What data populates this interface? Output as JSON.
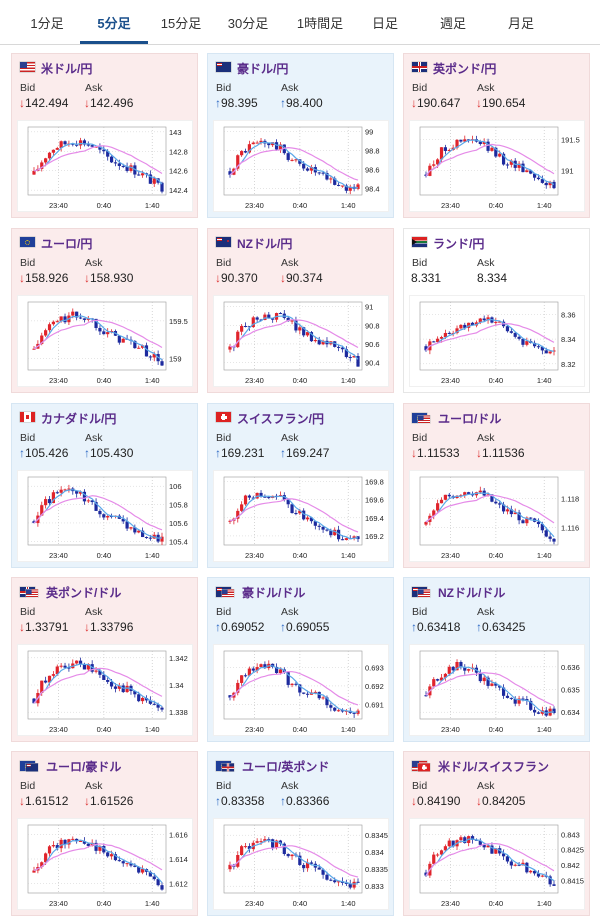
{
  "tabs": [
    {
      "label": "1分足",
      "active": false
    },
    {
      "label": "5分足",
      "active": true
    },
    {
      "label": "15分足",
      "active": false
    },
    {
      "label": "30分足",
      "active": false
    },
    {
      "label": "1時間足",
      "active": false
    },
    {
      "label": "日足",
      "active": false
    },
    {
      "label": "週足",
      "active": false
    },
    {
      "label": "月足",
      "active": false
    }
  ],
  "labels": {
    "bid": "Bid",
    "ask": "Ask"
  },
  "x_ticks": [
    "23:40",
    "0:40",
    "1:40"
  ],
  "colors": {
    "down_arrow": "#dd3333",
    "up_arrow": "#2a66c3",
    "pair_name": "#5a2b8a",
    "bull_candle": "#e0242c",
    "bear_candle": "#1d2a9e",
    "ma_short": "#5aa8e8",
    "ma_long": "#e58be8"
  },
  "cards": [
    {
      "pair": "米ドル/円",
      "flag": "us",
      "trend": "down",
      "bid": "142.494",
      "ask": "142.496",
      "yticks": [
        "143",
        "142.8",
        "142.6",
        "142.4"
      ],
      "ylim": [
        142.35,
        143.05
      ]
    },
    {
      "pair": "豪ドル/円",
      "flag": "au",
      "trend": "up",
      "bid": "98.395",
      "ask": "98.400",
      "yticks": [
        "99",
        "98.8",
        "98.6",
        "98.4"
      ],
      "ylim": [
        98.33,
        99.05
      ]
    },
    {
      "pair": "英ポンド/円",
      "flag": "gb",
      "trend": "down",
      "bid": "190.647",
      "ask": "190.654",
      "yticks": [
        "191.5",
        "191"
      ],
      "ylim": [
        190.6,
        191.7
      ]
    },
    {
      "pair": "ユーロ/円",
      "flag": "eu",
      "trend": "down",
      "bid": "158.926",
      "ask": "158.930",
      "yticks": [
        "159.5",
        "159"
      ],
      "ylim": [
        158.85,
        159.75
      ]
    },
    {
      "pair": "NZドル/円",
      "flag": "nz",
      "trend": "down",
      "bid": "90.370",
      "ask": "90.374",
      "yticks": [
        "91",
        "90.8",
        "90.6",
        "90.4"
      ],
      "ylim": [
        90.32,
        91.05
      ]
    },
    {
      "pair": "ランド/円",
      "flag": "za",
      "trend": "flat",
      "bid": "8.331",
      "ask": "8.334",
      "yticks": [
        "8.36",
        "8.34",
        "8.32"
      ],
      "ylim": [
        8.315,
        8.37
      ]
    },
    {
      "pair": "カナダドル/円",
      "flag": "ca",
      "trend": "up",
      "bid": "105.426",
      "ask": "105.430",
      "yticks": [
        "106",
        "105.8",
        "105.6",
        "105.4"
      ],
      "ylim": [
        105.36,
        106.1
      ]
    },
    {
      "pair": "スイスフラン/円",
      "flag": "ch",
      "trend": "up",
      "bid": "169.231",
      "ask": "169.247",
      "yticks": [
        "169.8",
        "169.6",
        "169.4",
        "169.2"
      ],
      "ylim": [
        169.1,
        169.85
      ]
    },
    {
      "pair": "ユーロ/ドル",
      "flag": "eu-us",
      "trend": "down",
      "bid": "1.11533",
      "ask": "1.11536",
      "yticks": [
        "1.118",
        "1.116"
      ],
      "ylim": [
        1.1148,
        1.1195
      ]
    },
    {
      "pair": "英ポンド/ドル",
      "flag": "gb-us",
      "trend": "down",
      "bid": "1.33791",
      "ask": "1.33796",
      "yticks": [
        "1.342",
        "1.34",
        "1.338"
      ],
      "ylim": [
        1.3375,
        1.3425
      ]
    },
    {
      "pair": "豪ドル/ドル",
      "flag": "au-us",
      "trend": "up",
      "bid": "0.69052",
      "ask": "0.69055",
      "yticks": [
        "0.693",
        "0.692",
        "0.691"
      ],
      "ylim": [
        0.6902,
        0.6939
      ]
    },
    {
      "pair": "NZドル/ドル",
      "flag": "nz-us",
      "trend": "up",
      "bid": "0.63418",
      "ask": "0.63425",
      "yticks": [
        "0.636",
        "0.635",
        "0.634"
      ],
      "ylim": [
        0.6337,
        0.6367
      ]
    },
    {
      "pair": "ユーロ/豪ドル",
      "flag": "eu-au",
      "trend": "down",
      "bid": "1.61512",
      "ask": "1.61526",
      "yticks": [
        "1.616",
        "1.614",
        "1.612"
      ],
      "ylim": [
        1.6112,
        1.6168
      ]
    },
    {
      "pair": "ユーロ/英ポンド",
      "flag": "eu-gb",
      "trend": "up",
      "bid": "0.83358",
      "ask": "0.83366",
      "yticks": [
        "0.8345",
        "0.834",
        "0.8335",
        "0.833"
      ],
      "ylim": [
        0.8328,
        0.8348
      ]
    },
    {
      "pair": "米ドル/スイスフラン",
      "flag": "us-ch",
      "trend": "down",
      "bid": "0.84190",
      "ask": "0.84205",
      "yticks": [
        "0.843",
        "0.8425",
        "0.842",
        "0.8415"
      ],
      "ylim": [
        0.8411,
        0.8433
      ]
    }
  ]
}
